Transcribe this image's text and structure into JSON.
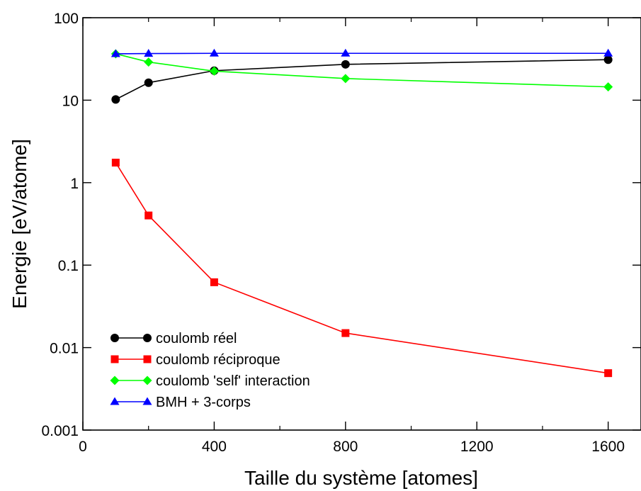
{
  "chart_data": {
    "type": "line",
    "xlabel": "Taille du système [atomes]",
    "ylabel": "Energie [eV/atome]",
    "xlim": [
      0,
      1700
    ],
    "ylim": [
      0.001,
      100
    ],
    "yscale": "log",
    "xticks": [
      0,
      400,
      800,
      1200,
      1600
    ],
    "xtick_labels": [
      "0",
      "400",
      "800",
      "1200",
      "1600"
    ],
    "yticks": [
      0.001,
      0.01,
      0.1,
      1,
      10,
      100
    ],
    "ytick_labels": [
      "0.001",
      "0.01",
      "0.1",
      "1",
      "10",
      "100"
    ],
    "grid": false,
    "legend_position": "bottom-left",
    "series": [
      {
        "name": "coulomb réel",
        "color": "#000000",
        "marker": "circle",
        "x": [
          100,
          200,
          400,
          800,
          1600
        ],
        "y": [
          10.2,
          16.3,
          22.8,
          27.2,
          31.0
        ]
      },
      {
        "name": "coulomb réciproque",
        "color": "#ff0000",
        "marker": "square",
        "x": [
          100,
          200,
          400,
          800,
          1600
        ],
        "y": [
          1.75,
          0.4,
          0.062,
          0.015,
          0.0049
        ]
      },
      {
        "name": "coulomb 'self' interaction",
        "color": "#00ff00",
        "marker": "diamond",
        "x": [
          100,
          200,
          400,
          800,
          1600
        ],
        "y": [
          36.5,
          29.0,
          22.5,
          18.3,
          14.5
        ]
      },
      {
        "name": "BMH + 3-corps",
        "color": "#0000ff",
        "marker": "triangle",
        "x": [
          100,
          200,
          400,
          800,
          1600
        ],
        "y": [
          36.5,
          36.8,
          37.0,
          37.0,
          37.0
        ]
      }
    ]
  }
}
